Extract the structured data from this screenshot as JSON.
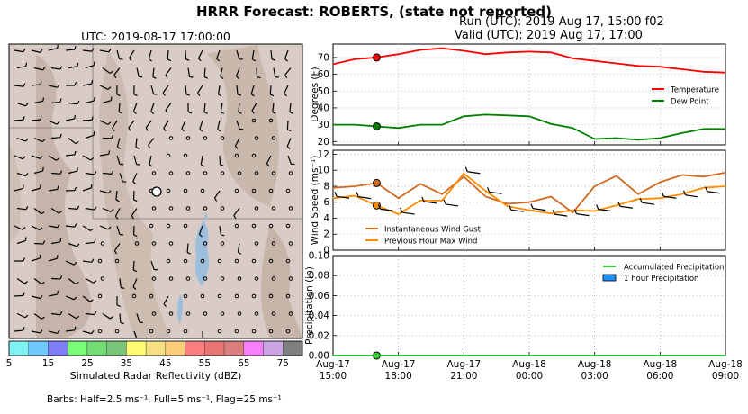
{
  "header": {
    "title": "HRRR Forecast: ROBERTS, (state not reported)",
    "run": "Run (UTC): 2019 Aug 17, 15:00 f02",
    "valid": "Valid (UTC): 2019 Aug 17, 17:00"
  },
  "map": {
    "time_label": "UTC: 2019-08-17 17:00:00",
    "colorbar_label": "Simulated Radar Reflectivity (dBZ)",
    "colorbar_ticks": [
      "5",
      "15",
      "25",
      "35",
      "45",
      "55",
      "65",
      "75"
    ],
    "colorbar_colors": [
      "#7ff3f3",
      "#6ecaff",
      "#7e7ef6",
      "#78fe76",
      "#72dd75",
      "#78c57a",
      "#fffe73",
      "#f6e082",
      "#fccd78",
      "#fc7e7e",
      "#e97474",
      "#dc7f7f",
      "#f97efc",
      "#cba4e4",
      "#7f7f7f"
    ],
    "barbs_note": "Barbs: Half=2.5 ms⁻¹, Full=5 ms⁻¹, Flag=25 ms⁻¹"
  },
  "chart_data": [
    {
      "type": "line",
      "ylabel": "Degrees (F)",
      "ylim": [
        18,
        78
      ],
      "yticks": [
        "20",
        "30",
        "40",
        "50",
        "60",
        "70"
      ],
      "grid": true,
      "legend": "right",
      "x_hours": [
        0,
        1,
        2,
        3,
        4,
        5,
        6,
        7,
        8,
        9,
        10,
        11,
        12,
        13,
        14,
        15,
        16,
        17,
        18
      ],
      "series": [
        {
          "name": "Temperature",
          "color": "#ff0000",
          "values": [
            66,
            69,
            70,
            72,
            74.5,
            75.5,
            74,
            72,
            73,
            73.5,
            73,
            69.5,
            68,
            66.5,
            65,
            64.5,
            63,
            61.5,
            61
          ]
        },
        {
          "name": "Dew Point",
          "color": "#008000",
          "values": [
            30,
            30,
            29,
            28,
            30,
            30,
            35,
            36,
            35.5,
            35,
            30.5,
            28,
            21.5,
            22,
            21,
            22,
            25,
            27.5,
            27.5
          ]
        }
      ],
      "marker": {
        "x": 2,
        "temp": 70,
        "dew": 29
      }
    },
    {
      "type": "line",
      "ylabel": "Wind Speed (ms⁻¹)",
      "ylim": [
        0,
        12.5
      ],
      "yticks": [
        "0",
        "2",
        "4",
        "6",
        "8",
        "10",
        "12"
      ],
      "grid": true,
      "legend": "lower-left",
      "x_hours": [
        0,
        1,
        2,
        3,
        4,
        5,
        6,
        7,
        8,
        9,
        10,
        11,
        12,
        13,
        14,
        15,
        16,
        17,
        18
      ],
      "series": [
        {
          "name": "Instantaneous Wind Gust",
          "color": "#d2691e",
          "values": [
            7.8,
            8.0,
            8.4,
            6.5,
            8.3,
            7.0,
            9.2,
            6.7,
            5.8,
            6.0,
            6.7,
            4.7,
            8.0,
            9.3,
            7.0,
            8.5,
            9.4,
            9.2,
            9.7
          ]
        },
        {
          "name": "Previous Hour Max Wind",
          "color": "#ff8c00",
          "values": [
            6.5,
            6.8,
            5.6,
            4.5,
            6.2,
            6.2,
            9.6,
            7.4,
            5.5,
            5.0,
            4.6,
            5.0,
            4.9,
            5.6,
            6.4,
            6.5,
            7.0,
            7.8,
            8.0
          ]
        }
      ],
      "marker": {
        "x": 2,
        "gust": 8.4,
        "maxwind": 5.6
      }
    },
    {
      "type": "area",
      "ylabel": "Precipitation (in)",
      "ylim": [
        0,
        0.1
      ],
      "yticks": [
        "0.00",
        "0.02",
        "0.04",
        "0.06",
        "0.08",
        "0.10"
      ],
      "grid": true,
      "legend": "top-right",
      "x_hours": [
        0,
        1,
        2,
        3,
        4,
        5,
        6,
        7,
        8,
        9,
        10,
        11,
        12,
        13,
        14,
        15,
        16,
        17,
        18
      ],
      "series": [
        {
          "name": "Accumulated Precipitation",
          "color": "#32cd32",
          "values": [
            0,
            0,
            0,
            0,
            0,
            0,
            0,
            0,
            0,
            0,
            0,
            0,
            0,
            0,
            0,
            0,
            0,
            0,
            0
          ]
        },
        {
          "name": "1 hour Precipitation",
          "color": "#1e90ff",
          "values": [
            0,
            0,
            0,
            0,
            0,
            0,
            0,
            0,
            0,
            0,
            0,
            0,
            0,
            0,
            0,
            0,
            0,
            0,
            0
          ]
        }
      ],
      "marker": {
        "x": 2,
        "value": 0
      },
      "xtick_labels": [
        [
          "Aug-17",
          "15:00"
        ],
        [
          "Aug-17",
          "18:00"
        ],
        [
          "Aug-17",
          "21:00"
        ],
        [
          "Aug-18",
          "00:00"
        ],
        [
          "Aug-18",
          "03:00"
        ],
        [
          "Aug-18",
          "06:00"
        ],
        [
          "Aug-18",
          "09:00"
        ]
      ],
      "xtick_hours": [
        0,
        3,
        6,
        9,
        12,
        15,
        18
      ]
    }
  ]
}
